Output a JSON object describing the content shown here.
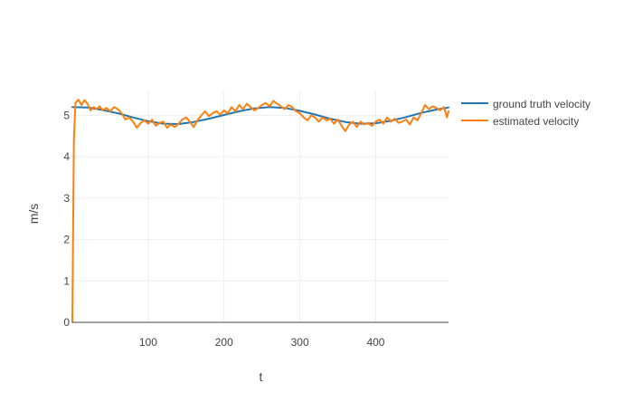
{
  "colors": {
    "background": "#ffffff",
    "grid": "#eeeeee",
    "axis_line": "#444444",
    "text": "#444444",
    "ground_truth": "#1f77b4",
    "estimated": "#ff7f0e"
  },
  "chart_data": {
    "type": "line",
    "title": "",
    "xlabel": "t",
    "ylabel": "m/s",
    "xlim": [
      0,
      496
    ],
    "ylim": [
      0,
      5.6
    ],
    "x_ticks": [
      100,
      200,
      300,
      400
    ],
    "y_ticks": [
      0,
      1,
      2,
      3,
      4,
      5
    ],
    "grid": true,
    "legend_position": "top-right, outside plot",
    "series": [
      {
        "name": "ground truth velocity",
        "color": "#1f77b4",
        "x": [
          0,
          20,
          40,
          60,
          80,
          100,
          120,
          140,
          160,
          180,
          200,
          220,
          240,
          260,
          280,
          300,
          320,
          340,
          360,
          380,
          400,
          420,
          440,
          460,
          480,
          496
        ],
        "y": [
          5.2,
          5.19,
          5.13,
          5.05,
          4.95,
          4.86,
          4.8,
          4.79,
          4.84,
          4.92,
          5.01,
          5.1,
          5.17,
          5.2,
          5.18,
          5.11,
          5.02,
          4.92,
          4.84,
          4.8,
          4.81,
          4.87,
          4.96,
          5.06,
          5.14,
          5.19
        ]
      },
      {
        "name": "estimated velocity",
        "color": "#ff7f0e",
        "x": [
          0,
          2,
          4,
          8,
          12,
          16,
          20,
          24,
          28,
          32,
          36,
          40,
          45,
          50,
          55,
          60,
          65,
          70,
          75,
          80,
          85,
          90,
          95,
          100,
          105,
          110,
          115,
          120,
          125,
          130,
          135,
          140,
          145,
          150,
          155,
          160,
          165,
          170,
          175,
          180,
          185,
          190,
          195,
          200,
          205,
          210,
          215,
          220,
          225,
          230,
          235,
          240,
          245,
          250,
          255,
          260,
          265,
          270,
          275,
          280,
          285,
          290,
          295,
          300,
          305,
          310,
          315,
          320,
          325,
          330,
          335,
          340,
          345,
          350,
          355,
          360,
          365,
          370,
          375,
          380,
          385,
          390,
          395,
          400,
          405,
          410,
          415,
          420,
          425,
          430,
          435,
          440,
          445,
          450,
          455,
          460,
          465,
          470,
          475,
          480,
          485,
          490,
          494,
          496
        ],
        "y": [
          0.0,
          4.4,
          5.3,
          5.38,
          5.25,
          5.37,
          5.28,
          5.12,
          5.2,
          5.15,
          5.22,
          5.12,
          5.18,
          5.1,
          5.2,
          5.15,
          5.05,
          4.9,
          4.95,
          4.85,
          4.7,
          4.82,
          4.88,
          4.8,
          4.9,
          4.75,
          4.82,
          4.85,
          4.7,
          4.78,
          4.72,
          4.8,
          4.9,
          4.95,
          4.85,
          4.72,
          4.88,
          5.0,
          5.1,
          4.98,
          5.05,
          5.1,
          5.02,
          5.12,
          5.05,
          5.2,
          5.1,
          5.25,
          5.15,
          5.28,
          5.2,
          5.12,
          5.18,
          5.25,
          5.3,
          5.22,
          5.35,
          5.28,
          5.22,
          5.15,
          5.25,
          5.2,
          5.1,
          5.05,
          4.95,
          4.88,
          5.0,
          4.95,
          4.85,
          4.95,
          4.88,
          4.92,
          4.8,
          4.9,
          4.75,
          4.62,
          4.78,
          4.85,
          4.72,
          4.85,
          4.78,
          4.82,
          4.75,
          4.85,
          4.9,
          4.8,
          4.95,
          4.85,
          4.92,
          4.82,
          4.85,
          4.9,
          4.78,
          4.95,
          4.88,
          5.05,
          5.25,
          5.15,
          5.22,
          5.18,
          5.12,
          5.2,
          4.95,
          5.1
        ]
      }
    ]
  }
}
